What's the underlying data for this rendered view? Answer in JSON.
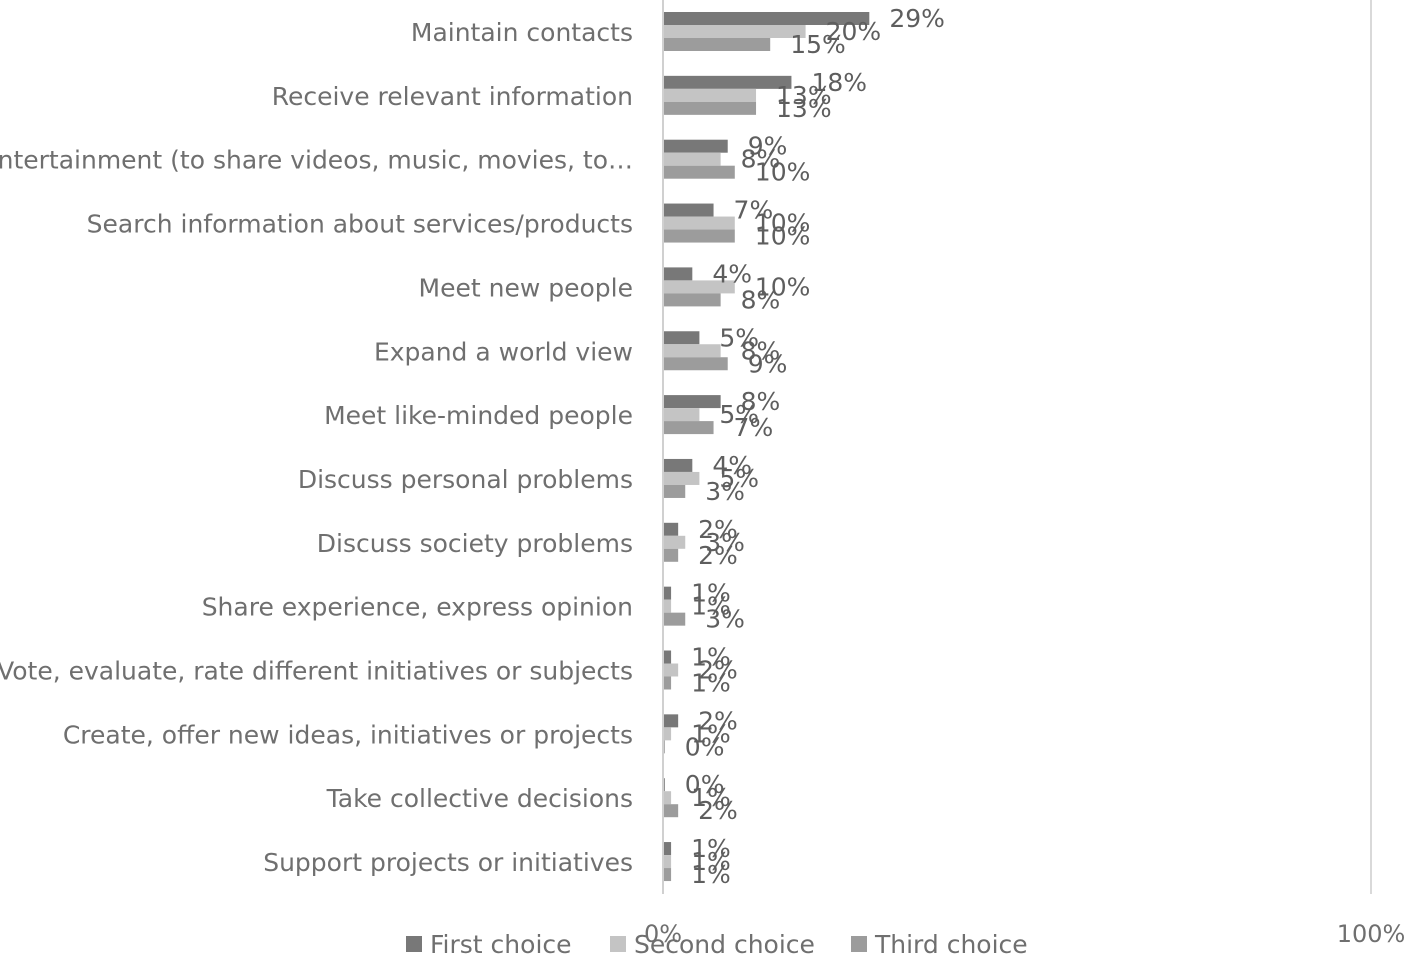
{
  "chart_data": {
    "type": "bar",
    "orientation": "horizontal",
    "categories": [
      "Maintain contacts",
      "Receive relevant information",
      "Entertainment (to share videos, music, movies, to…",
      "Search information about services/products",
      "Meet new people",
      "Expand a world view",
      "Meet like-minded people",
      "Discuss personal problems",
      "Discuss society problems",
      "Share experience, express opinion",
      "Vote, evaluate, rate different initiatives or subjects",
      "Create, offer new ideas, initiatives or projects",
      "Take collective decisions",
      "Support projects or initiatives"
    ],
    "series": [
      {
        "name": "First choice",
        "color": "#787878",
        "values": [
          29,
          18,
          9,
          7,
          4,
          5,
          8,
          4,
          2,
          1,
          1,
          2,
          0,
          1
        ],
        "labels": [
          "29%",
          "18%",
          "9%",
          "7%",
          "4%",
          "5%",
          "8%",
          "4%",
          "2%",
          "1%",
          "1%",
          "2%",
          "0%",
          "1%"
        ]
      },
      {
        "name": "Second choice",
        "color": "#c4c4c4",
        "values": [
          20,
          13,
          8,
          10,
          10,
          8,
          5,
          5,
          3,
          1,
          2,
          1,
          1,
          1
        ],
        "labels": [
          "20%",
          "13%",
          "8%",
          "10%",
          "10%",
          "8%",
          "5%",
          "5%",
          "3%",
          "1%",
          "2%",
          "1%",
          "1%",
          "1%"
        ]
      },
      {
        "name": "Third choice",
        "color": "#9c9c9c",
        "values": [
          15,
          13,
          10,
          10,
          8,
          9,
          7,
          3,
          2,
          3,
          1,
          0,
          2,
          1
        ],
        "labels": [
          "15%",
          "13%",
          "10%",
          "10%",
          "8%",
          "9%",
          "7%",
          "3%",
          "2%",
          "3%",
          "1%",
          "0%",
          "2%",
          "1%"
        ]
      }
    ],
    "xlim": [
      0,
      100
    ],
    "x_ticks": [
      "0%",
      "100%"
    ],
    "title": "",
    "xlabel": "",
    "ylabel": "",
    "grid": false,
    "legend_position": "bottom"
  }
}
